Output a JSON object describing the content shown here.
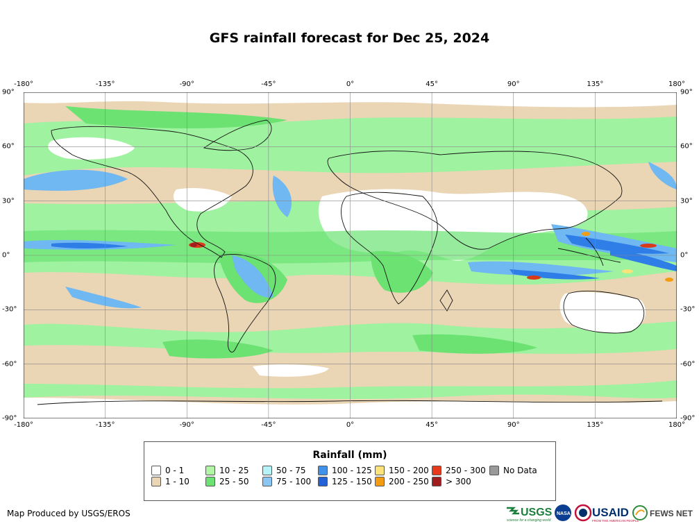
{
  "title": "GFS rainfall forecast for Dec 25, 2024",
  "axes": {
    "lon_labels": [
      "-180°",
      "-135°",
      "-90°",
      "-45°",
      "0°",
      "45°",
      "90°",
      "135°",
      "180°"
    ],
    "lat_labels": [
      "90°",
      "60°",
      "30°",
      "0°",
      "-30°",
      "-60°",
      "-90°"
    ]
  },
  "map": {
    "projection": "equirectangular",
    "extent": {
      "lon": [
        -180,
        180
      ],
      "lat": [
        -90,
        90
      ]
    },
    "graticule_spacing_deg": {
      "lon": 45,
      "lat": 30
    },
    "colors": {
      "ocean_light": "#9ff2a0",
      "land_dry": "#ead5b5",
      "moderate": "#6be272",
      "heavy": "#6fb8f1",
      "very_heavy": "#2f7de6",
      "extreme": "#d83a1a"
    }
  },
  "legend": {
    "title": "Rainfall (mm)",
    "items": [
      {
        "label": "0 - 1",
        "color": "#ffffff"
      },
      {
        "label": "1 - 10",
        "color": "#ead5b5"
      },
      {
        "label": "10 - 25",
        "color": "#b2f5a7"
      },
      {
        "label": "25 - 50",
        "color": "#6be272"
      },
      {
        "label": "50 - 75",
        "color": "#b6f3f9"
      },
      {
        "label": "75 - 100",
        "color": "#8ac6f4"
      },
      {
        "label": "100 - 125",
        "color": "#3f91ea"
      },
      {
        "label": "125 - 150",
        "color": "#2262d6"
      },
      {
        "label": "150 - 200",
        "color": "#fbe27a"
      },
      {
        "label": "200 - 250",
        "color": "#f39c12"
      },
      {
        "label": "250 - 300",
        "color": "#e8391d"
      },
      {
        "label": "> 300",
        "color": "#a11d1d"
      },
      {
        "label": "No Data",
        "color": "#999999"
      }
    ]
  },
  "credit": "Map Produced by USGS/EROS",
  "logos": {
    "usgs": "USGS",
    "usgs_tagline": "science for a changing world",
    "nasa": "NASA",
    "usaid": "USAID",
    "usaid_tagline": "FROM THE AMERICAN PEOPLE",
    "fewsnet": "FEWS NET"
  }
}
